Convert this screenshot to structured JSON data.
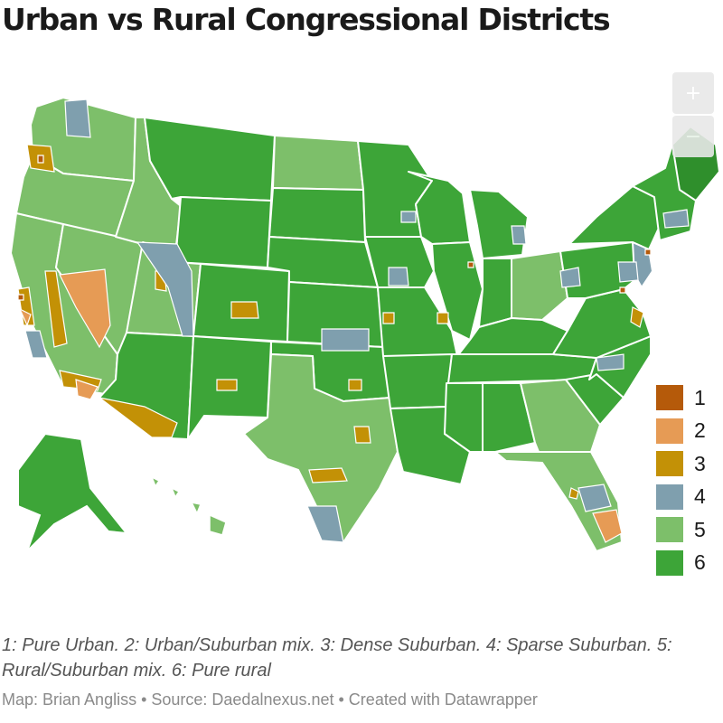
{
  "title": "Urban vs Rural Congressional Districts",
  "zoom": {
    "in_label": "+",
    "out_label": "−"
  },
  "legend": {
    "items": [
      {
        "label": "1",
        "color": "#b55a0a"
      },
      {
        "label": "2",
        "color": "#e69b55"
      },
      {
        "label": "3",
        "color": "#c39106"
      },
      {
        "label": "4",
        "color": "#7f9fae"
      },
      {
        "label": "5",
        "color": "#7dbf6a"
      },
      {
        "label": "6",
        "color": "#3da538"
      }
    ]
  },
  "map_colors": {
    "pure_rural": "#3da538",
    "rural_suburban": "#7dbf6a",
    "sparse_suburban": "#7f9fae",
    "dense_suburban": "#c39106",
    "urban_suburban": "#e69b55",
    "pure_urban": "#b55a0a",
    "border": "#ffffff"
  },
  "description": "1: Pure Urban. 2: Urban/Suburban mix. 3: Dense Suburban. 4: Sparse Suburban. 5: Rural/Suburban mix. 6: Pure rural",
  "footer": "Map: Brian Angliss • Source: Daedalnexus.net • Created with Datawrapper"
}
